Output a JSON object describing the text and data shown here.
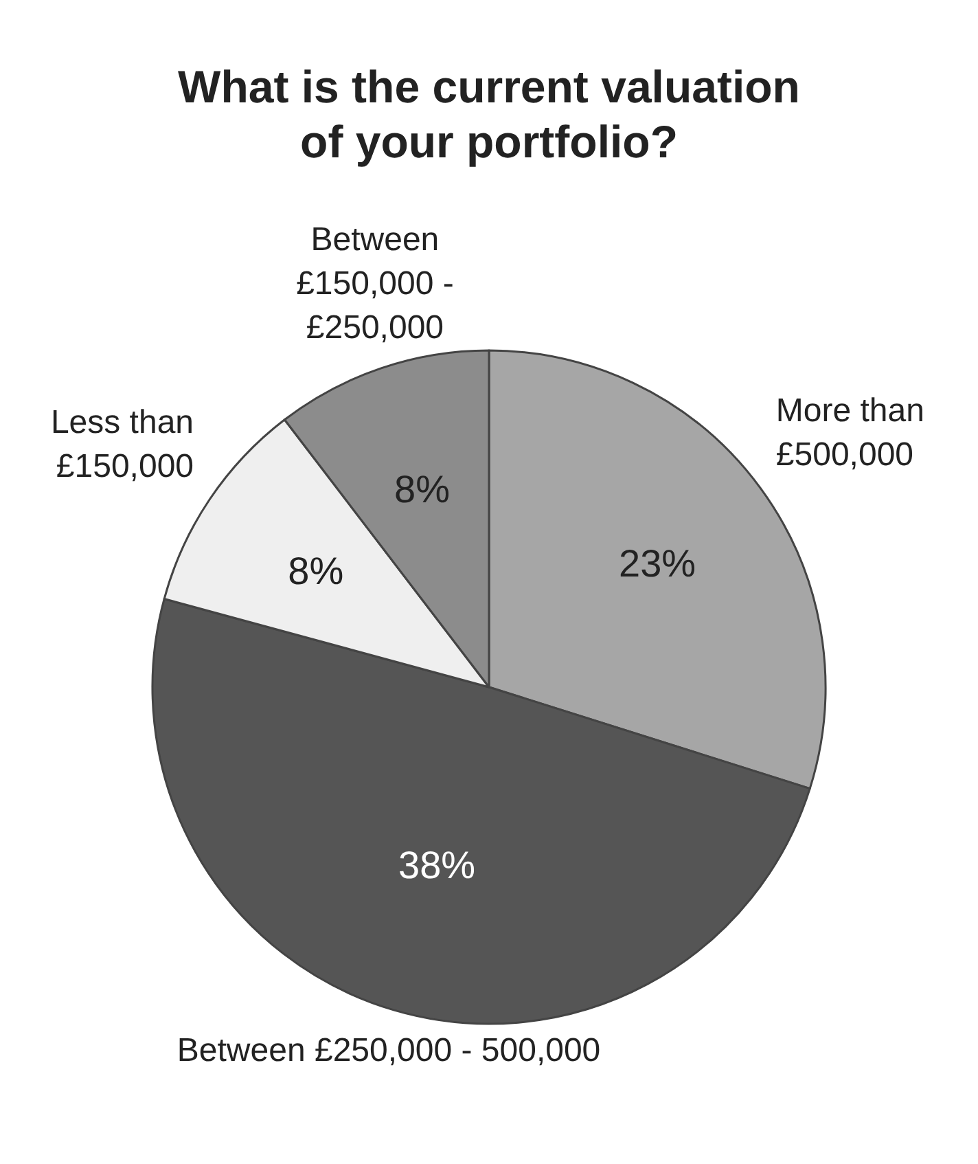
{
  "chart_data": {
    "type": "pie",
    "title": "What is the current valuation\nof your portfolio?",
    "categories": [
      "More than £500,000",
      "Between £250,000 - 500,000",
      "Less than £150,000",
      "Between £150,000 - £250,000"
    ],
    "values": [
      23,
      38,
      8,
      8
    ],
    "value_labels": [
      "23%",
      "38%",
      "8%",
      "8%"
    ],
    "colors": [
      "#a6a6a6",
      "#555555",
      "#efefef",
      "#8c8c8c"
    ]
  }
}
